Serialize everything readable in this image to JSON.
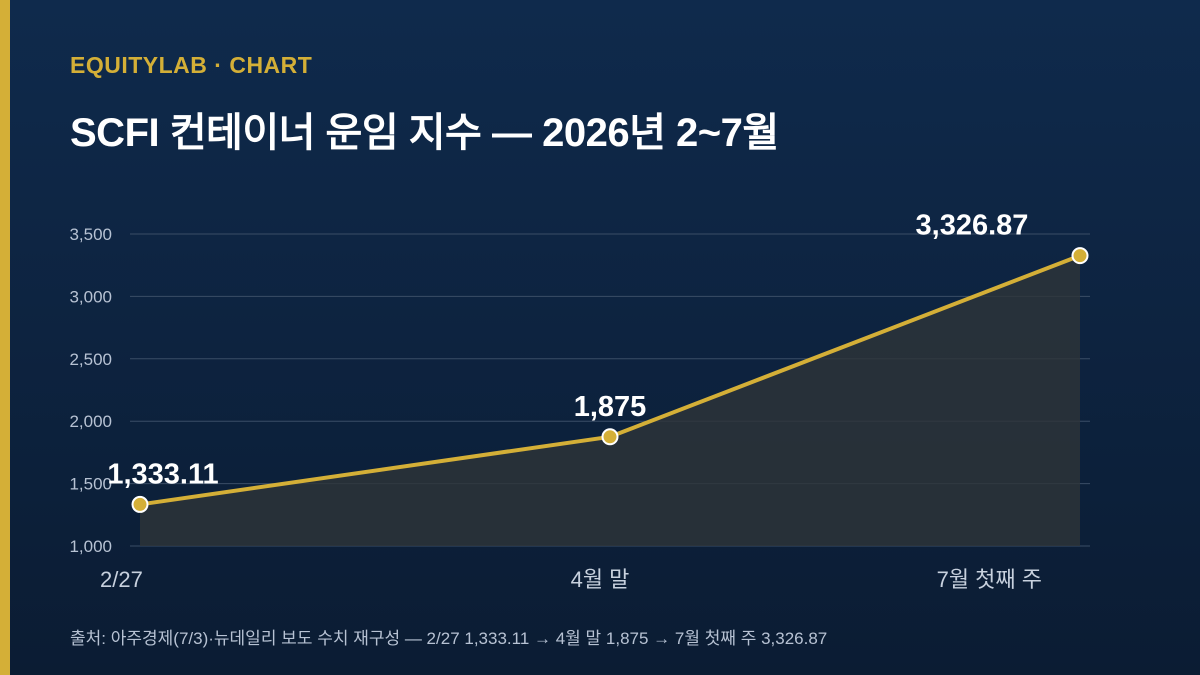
{
  "header": {
    "kicker": "EQUITYLAB · CHART",
    "title": "SCFI 컨테이너 운임 지수 — 2026년 2~7월"
  },
  "footer": {
    "source": "출처: 아주경제(7/3)·뉴데일리 보도 수치 재구성 — 2/27 1,333.11 → 4월 말 1,875 → 7월 첫째 주 3,326.87"
  },
  "colors": {
    "background": "#0f2a4c",
    "accent": "#d4af37",
    "line": "#d4af37",
    "text": "#ffffff",
    "muted": "#b7c2d3"
  },
  "chart_data": {
    "type": "line",
    "title": "SCFI 컨테이너 운임 지수 — 2026년 2~7월",
    "xlabel": "",
    "ylabel": "",
    "categories": [
      "2/27",
      "4월 말",
      "7월 첫째 주"
    ],
    "values": [
      1333.11,
      1875,
      3326.87
    ],
    "data_labels": [
      "1,333.11",
      "1,875",
      "3,326.87"
    ],
    "ylim": [
      1000,
      3500
    ],
    "yticks": [
      1000,
      1500,
      2000,
      2500,
      3000,
      3500
    ],
    "ytick_labels": [
      "1,000",
      "1,500",
      "2,000",
      "2,500",
      "3,000",
      "3,500"
    ],
    "grid": true,
    "area_fill": true,
    "legend": "none"
  }
}
